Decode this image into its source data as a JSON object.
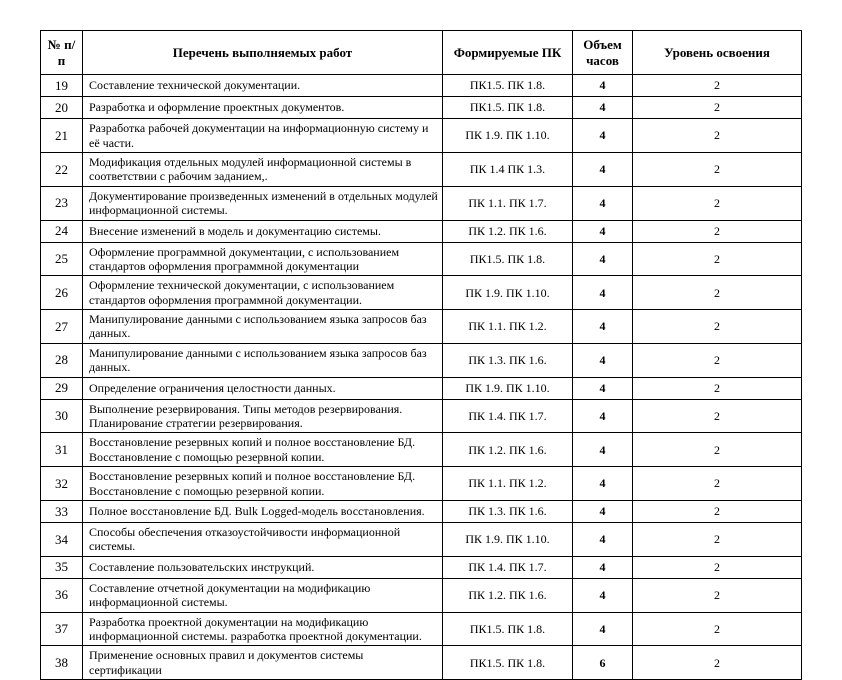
{
  "table": {
    "columns": {
      "num": "№ п/п",
      "work": "Перечень выполняемых работ",
      "pk": "Формируемые ПК",
      "hours": "Объем часов",
      "level": "Уровень освоения"
    },
    "rows": [
      {
        "num": "19",
        "work": "Составление технической документации.",
        "pk": "ПК1.5.  ПК 1.8.",
        "hours": "4",
        "level": "2"
      },
      {
        "num": "20",
        "work": "Разработка и оформление проектных документов.",
        "pk": "ПК1.5.  ПК 1.8.",
        "hours": "4",
        "level": "2"
      },
      {
        "num": "21",
        "work": "Разработка рабочей документации на информационную систему и её части.",
        "pk": "ПК 1.9. ПК 1.10.",
        "hours": "4",
        "level": "2"
      },
      {
        "num": "22",
        "work": "Модификация отдельных модулей информационной системы в соответствии с рабочим заданием,.",
        "pk": "ПК 1.4 ПК 1.3.",
        "hours": "4",
        "level": "2"
      },
      {
        "num": "23",
        "work": "Документирование произведенных изменений в отдельных модулей информационной системы.",
        "pk": "ПК 1.1. ПК 1.7.",
        "hours": "4",
        "level": "2"
      },
      {
        "num": "24",
        "work": "Внесение изменений в модель и документацию системы.",
        "pk": "ПК 1.2. ПК 1.6.",
        "hours": "4",
        "level": "2"
      },
      {
        "num": "25",
        "work": "Оформление программной документации, с использованием стандартов оформления программной документации",
        "pk": "ПК1.5.  ПК 1.8.",
        "hours": "4",
        "level": "2"
      },
      {
        "num": "26",
        "work": "Оформление технической документации, с использованием стандартов оформления программной документации.",
        "pk": "ПК 1.9. ПК 1.10.",
        "hours": "4",
        "level": "2"
      },
      {
        "num": "27",
        "work": "Манипулирование данными с использованием языка запросов баз данных.",
        "pk": "ПК 1.1. ПК 1.2.",
        "hours": "4",
        "level": "2"
      },
      {
        "num": "28",
        "work": "Манипулирование данными с использованием языка запросов баз данных.",
        "pk": "ПК 1.3. ПК 1.6.",
        "hours": "4",
        "level": "2"
      },
      {
        "num": "29",
        "work": "Определение ограничения целостности данных.",
        "pk": "ПК 1.9. ПК 1.10.",
        "hours": "4",
        "level": "2"
      },
      {
        "num": "30",
        "work": "Выполнение резервирования. Типы методов резервирования. Планирование стратегии резервирования.",
        "pk": "ПК 1.4. ПК 1.7.",
        "hours": "4",
        "level": "2"
      },
      {
        "num": "31",
        "work": "Восстановление резервных копий и полное восстановление БД. Восстановление с помощью резервной копии.",
        "pk": "ПК 1.2. ПК 1.6.",
        "hours": "4",
        "level": "2"
      },
      {
        "num": "32",
        "work": "Восстановление резервных копий и полное восстановление БД. Восстановление с помощью резервной копии.",
        "pk": "ПК 1.1.  ПК 1.2.",
        "hours": "4",
        "level": "2"
      },
      {
        "num": "33",
        "work": "Полное восстановление БД. Bulk Logged-модель восстановления.",
        "pk": "ПК 1.3. ПК 1.6.",
        "hours": "4",
        "level": "2"
      },
      {
        "num": "34",
        "work": "Способы обеспечения отказоустойчивости информационной системы.",
        "pk": "ПК 1.9. ПК 1.10.",
        "hours": "4",
        "level": "2"
      },
      {
        "num": "35",
        "work": "Составление пользовательских инструкций.",
        "pk": "ПК 1.4. ПК 1.7.",
        "hours": "4",
        "level": "2"
      },
      {
        "num": "36",
        "work": "Составление отчетной документации на модификацию информационной системы.",
        "pk": "ПК 1.2. ПК 1.6.",
        "hours": "4",
        "level": "2"
      },
      {
        "num": "37",
        "work": "Разработка проектной документации на модификацию информационной системы. разработка проектной документации.",
        "pk": "ПК1.5.  ПК 1.8.",
        "hours": "4",
        "level": "2"
      },
      {
        "num": "38",
        "work": "Применение основных правил и документов системы сертификации",
        "pk": "ПК1.5.  ПК 1.8.",
        "hours": "6",
        "level": "2"
      }
    ]
  }
}
